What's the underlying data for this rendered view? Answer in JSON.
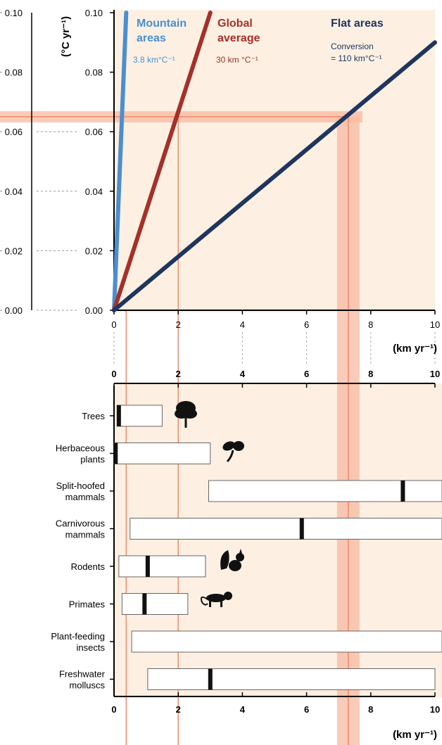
{
  "colors": {
    "panel_bg": "#fdf0e2",
    "band": "#f7b9a0",
    "band_line": "#ee8a6b",
    "mountain": "#4a8fd0",
    "global": "#a5302a",
    "flat": "#1e3560",
    "axis": "#000000"
  },
  "chart_data": [
    {
      "type": "line",
      "ylabel": "(°C yr⁻¹)",
      "xlabel": "(km yr⁻¹)",
      "xlim": [
        0,
        10
      ],
      "ylim": [
        0,
        0.1
      ],
      "x_ticks": [
        "0",
        "2",
        "4",
        "6",
        "8",
        "10"
      ],
      "y_ticks": [
        "0.00",
        "0.02",
        "0.04",
        "0.06",
        "0.08",
        "0.10"
      ],
      "series": [
        {
          "name": "Mountain areas",
          "rate_label": "3.8 km°C⁻¹",
          "color": "#4a8fd0",
          "x": [
            0,
            0.38
          ],
          "y": [
            0,
            0.1
          ]
        },
        {
          "name": "Global average",
          "rate_label": "30 km °C⁻¹",
          "color": "#a5302a",
          "x": [
            0,
            3.0
          ],
          "y": [
            0,
            0.1
          ]
        },
        {
          "name": "Flat areas",
          "rate_label_1": "Conversion",
          "rate_label_2": "= 110 km°C⁻¹",
          "color": "#1e3560",
          "x": [
            0,
            10
          ],
          "y": [
            0,
            0.09
          ]
        }
      ],
      "reference_y": 0.065,
      "reference_x": [
        0.38,
        2.0,
        7.3
      ]
    },
    {
      "type": "bar",
      "orientation": "horizontal",
      "xlabel": "(km yr⁻¹)",
      "xlim": [
        0,
        10
      ],
      "x_ticks": [
        "0",
        "2",
        "4",
        "6",
        "8",
        "10"
      ],
      "categories": [
        {
          "line1": "Trees",
          "line2": "",
          "min": 0.1,
          "max": 1.5,
          "median": 0.15,
          "icon": "tree-icon"
        },
        {
          "line1": "Herbaceous",
          "line2": "plants",
          "min": 0.0,
          "max": 3.0,
          "median": 0.05,
          "icon": "herbaceous-plant-icon"
        },
        {
          "line1": "Split-hoofed",
          "line2": "mammals",
          "min": 2.95,
          "max": 10.3,
          "median": 9.0,
          "icon": ""
        },
        {
          "line1": "Carnivorous",
          "line2": "mammals",
          "min": 0.5,
          "max": 10.3,
          "median": 5.85,
          "icon": ""
        },
        {
          "line1": "Rodents",
          "line2": "",
          "min": 0.15,
          "max": 2.85,
          "median": 1.05,
          "icon": "squirrel-icon"
        },
        {
          "line1": "Primates",
          "line2": "",
          "min": 0.25,
          "max": 2.3,
          "median": 0.95,
          "icon": "monkey-icon"
        },
        {
          "line1": "Plant-feeding",
          "line2": "insects",
          "min": 0.55,
          "max": 10.3,
          "median": null,
          "icon": ""
        },
        {
          "line1": "Freshwater",
          "line2": "molluscs",
          "min": 1.05,
          "max": 10.0,
          "median": 3.0,
          "icon": ""
        }
      ]
    }
  ],
  "left_axis_ticks": [
    "0.10",
    "0.08",
    "0.06",
    "0.04",
    "0.02",
    "0.00"
  ]
}
